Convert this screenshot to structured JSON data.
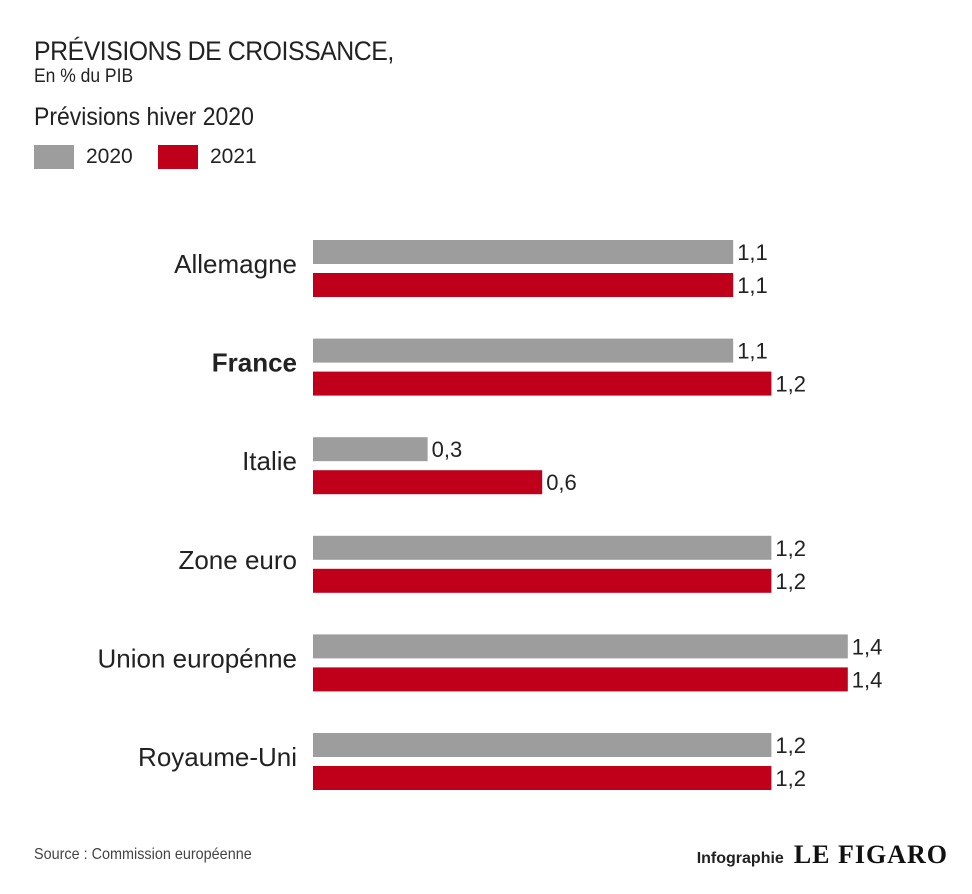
{
  "header": {
    "title": "PRÉVISIONS DE CROISSANCE,",
    "subtitle": "En % du PIB",
    "heading": "Prévisions hiver 2020"
  },
  "legend": [
    {
      "label": "2020",
      "color": "#9d9d9d"
    },
    {
      "label": "2021",
      "color": "#c0001b"
    }
  ],
  "chart_data": {
    "type": "bar",
    "orientation": "horizontal",
    "categories": [
      "Allemagne",
      "France",
      "Italie",
      "Zone euro",
      "Union europénne",
      "Royaume-Uni"
    ],
    "highlight_category": "France",
    "series": [
      {
        "name": "2020",
        "color": "#9d9d9d",
        "values": [
          1.1,
          1.1,
          0.3,
          1.2,
          1.4,
          1.2
        ],
        "labels": [
          "1,1",
          "1,1",
          "0,3",
          "1,2",
          "1,4",
          "1,2"
        ]
      },
      {
        "name": "2021",
        "color": "#c0001b",
        "values": [
          1.1,
          1.2,
          0.6,
          1.2,
          1.4,
          1.2
        ],
        "labels": [
          "1,1",
          "1,2",
          "0,6",
          "1,2",
          "1,4",
          "1,2"
        ]
      }
    ],
    "xlim": [
      0,
      1.4
    ],
    "grid": false,
    "legend_position": "top-left"
  },
  "footer": {
    "source": "Source : Commission européenne",
    "credit_prefix": "Infographie",
    "credit_brand": "LE FIGARO"
  }
}
